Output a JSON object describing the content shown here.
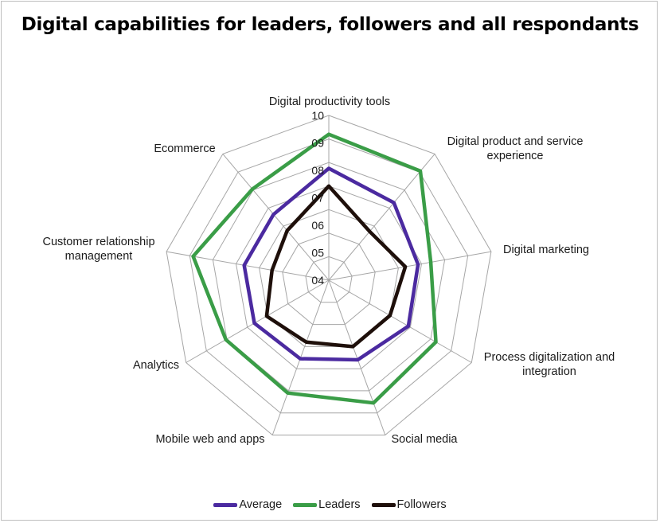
{
  "chart_data": {
    "type": "radar",
    "title": "Digital capabilities for leaders, followers and all respondants",
    "categories": [
      "Digital productivity tools",
      "Digital product and service experience",
      "Digital marketing",
      "Process digitalization and integration",
      "Social media",
      "Mobile web and apps",
      "Analytics",
      "Customer relationship management",
      "Ecommerce"
    ],
    "category_lines": [
      [
        "Digital productivity tools"
      ],
      [
        "Digital product and service",
        "experience"
      ],
      [
        "Digital marketing"
      ],
      [
        "Process digitalization and",
        "integration"
      ],
      [
        "Social media"
      ],
      [
        "Mobile web and apps"
      ],
      [
        "Analytics"
      ],
      [
        "Customer relationship",
        "management"
      ],
      [
        "Ecommerce"
      ]
    ],
    "r_ticks": [
      "04",
      "05",
      "06",
      "07",
      "08",
      "09",
      "10"
    ],
    "rlim": [
      0.3,
      1.0
    ],
    "series": [
      {
        "name": "Average",
        "color": "#4b2aa0",
        "values": [
          0.775,
          0.73,
          0.685,
          0.69,
          0.66,
          0.655,
          0.665,
          0.665,
          0.665
        ]
      },
      {
        "name": "Leaders",
        "color": "#3a9d47",
        "values": [
          0.92,
          0.905,
          0.74,
          0.825,
          0.855,
          0.81,
          0.805,
          0.885,
          0.805
        ]
      },
      {
        "name": "Followers",
        "color": "#1e0f0a",
        "values": [
          0.7,
          0.57,
          0.63,
          0.6,
          0.6,
          0.58,
          0.605,
          0.545,
          0.575
        ]
      }
    ],
    "legend_position": "bottom",
    "grid": true
  }
}
